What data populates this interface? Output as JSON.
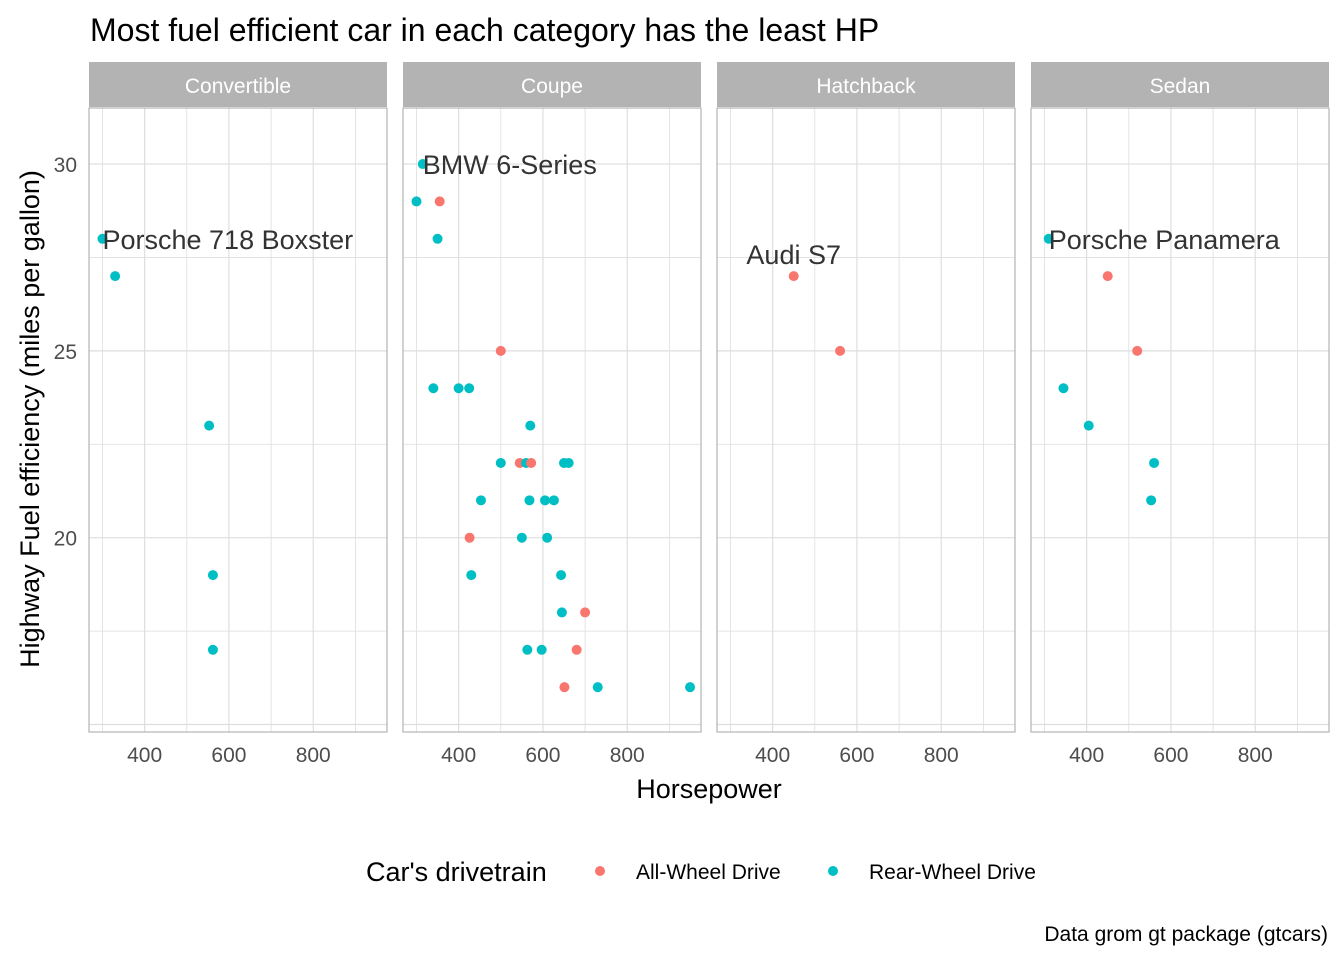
{
  "chart_data": {
    "type": "scatter",
    "title": "Most fuel efficient car in each category has the least HP",
    "xlabel": "Horsepower",
    "ylabel": "Highway Fuel efficiency (miles per gallon)",
    "caption": "Data grom gt package (gtcars)",
    "xlim": [
      268,
      975
    ],
    "ylim": [
      14.8,
      31.5
    ],
    "x_ticks": [
      400,
      600,
      800
    ],
    "y_ticks": [
      20,
      25,
      30
    ],
    "grid": true,
    "legend": {
      "title": "Car's drivetrain",
      "position": "bottom",
      "entries": [
        {
          "label": "All-Wheel Drive",
          "color": "#F8766D"
        },
        {
          "label": "Rear-Wheel Drive",
          "color": "#00BFC4"
        }
      ]
    },
    "colors": {
      "All-Wheel Drive": "#F8766D",
      "Rear-Wheel Drive": "#00BFC4",
      "strip_background": "#b3b3b3",
      "panel_border": "#b3b3b3",
      "grid": "#dedede"
    },
    "facets": [
      {
        "label": "Convertible",
        "annotation": {
          "text": "Porsche 718 Boxster",
          "x": 300,
          "y": 28
        },
        "points": [
          {
            "x": 300,
            "y": 28,
            "drive": "Rear-Wheel Drive"
          },
          {
            "x": 330,
            "y": 27,
            "drive": "Rear-Wheel Drive"
          },
          {
            "x": 553,
            "y": 23,
            "drive": "Rear-Wheel Drive"
          },
          {
            "x": 562,
            "y": 19,
            "drive": "Rear-Wheel Drive"
          },
          {
            "x": 562,
            "y": 17,
            "drive": "Rear-Wheel Drive"
          }
        ]
      },
      {
        "label": "Coupe",
        "annotation": {
          "text": "BMW 6-Series",
          "x": 315,
          "y": 30
        },
        "points": [
          {
            "x": 315,
            "y": 30,
            "drive": "Rear-Wheel Drive"
          },
          {
            "x": 300,
            "y": 29,
            "drive": "Rear-Wheel Drive"
          },
          {
            "x": 355,
            "y": 29,
            "drive": "All-Wheel Drive"
          },
          {
            "x": 350,
            "y": 28,
            "drive": "Rear-Wheel Drive"
          },
          {
            "x": 500,
            "y": 25,
            "drive": "All-Wheel Drive"
          },
          {
            "x": 340,
            "y": 24,
            "drive": "Rear-Wheel Drive"
          },
          {
            "x": 400,
            "y": 24,
            "drive": "Rear-Wheel Drive"
          },
          {
            "x": 425,
            "y": 24,
            "drive": "Rear-Wheel Drive"
          },
          {
            "x": 570,
            "y": 23,
            "drive": "Rear-Wheel Drive"
          },
          {
            "x": 500,
            "y": 22,
            "drive": "Rear-Wheel Drive"
          },
          {
            "x": 545,
            "y": 22,
            "drive": "All-Wheel Drive"
          },
          {
            "x": 560,
            "y": 22,
            "drive": "Rear-Wheel Drive"
          },
          {
            "x": 572,
            "y": 22,
            "drive": "All-Wheel Drive"
          },
          {
            "x": 650,
            "y": 22,
            "drive": "Rear-Wheel Drive"
          },
          {
            "x": 661,
            "y": 22,
            "drive": "Rear-Wheel Drive"
          },
          {
            "x": 453,
            "y": 21,
            "drive": "Rear-Wheel Drive"
          },
          {
            "x": 568,
            "y": 21,
            "drive": "Rear-Wheel Drive"
          },
          {
            "x": 605,
            "y": 21,
            "drive": "Rear-Wheel Drive"
          },
          {
            "x": 626,
            "y": 21,
            "drive": "Rear-Wheel Drive"
          },
          {
            "x": 426,
            "y": 20,
            "drive": "All-Wheel Drive"
          },
          {
            "x": 550,
            "y": 20,
            "drive": "Rear-Wheel Drive"
          },
          {
            "x": 610,
            "y": 20,
            "drive": "Rear-Wheel Drive"
          },
          {
            "x": 430,
            "y": 19,
            "drive": "Rear-Wheel Drive"
          },
          {
            "x": 643,
            "y": 19,
            "drive": "Rear-Wheel Drive"
          },
          {
            "x": 645,
            "y": 18,
            "drive": "Rear-Wheel Drive"
          },
          {
            "x": 700,
            "y": 18,
            "drive": "All-Wheel Drive"
          },
          {
            "x": 563,
            "y": 17,
            "drive": "Rear-Wheel Drive"
          },
          {
            "x": 597,
            "y": 17,
            "drive": "Rear-Wheel Drive"
          },
          {
            "x": 680,
            "y": 17,
            "drive": "All-Wheel Drive"
          },
          {
            "x": 651,
            "y": 16,
            "drive": "All-Wheel Drive"
          },
          {
            "x": 730,
            "y": 16,
            "drive": "Rear-Wheel Drive"
          },
          {
            "x": 949,
            "y": 16,
            "drive": "Rear-Wheel Drive"
          }
        ]
      },
      {
        "label": "Hatchback",
        "annotation": {
          "text": "Audi S7",
          "x": 450,
          "y": 27
        },
        "points": [
          {
            "x": 450,
            "y": 27,
            "drive": "All-Wheel Drive"
          },
          {
            "x": 560,
            "y": 25,
            "drive": "All-Wheel Drive"
          }
        ]
      },
      {
        "label": "Sedan",
        "annotation": {
          "text": "Porsche Panamera",
          "x": 310,
          "y": 28
        },
        "points": [
          {
            "x": 310,
            "y": 28,
            "drive": "Rear-Wheel Drive"
          },
          {
            "x": 450,
            "y": 27,
            "drive": "All-Wheel Drive"
          },
          {
            "x": 520,
            "y": 25,
            "drive": "All-Wheel Drive"
          },
          {
            "x": 345,
            "y": 24,
            "drive": "Rear-Wheel Drive"
          },
          {
            "x": 405,
            "y": 23,
            "drive": "Rear-Wheel Drive"
          },
          {
            "x": 560,
            "y": 22,
            "drive": "Rear-Wheel Drive"
          },
          {
            "x": 553,
            "y": 21,
            "drive": "Rear-Wheel Drive"
          }
        ]
      }
    ]
  }
}
